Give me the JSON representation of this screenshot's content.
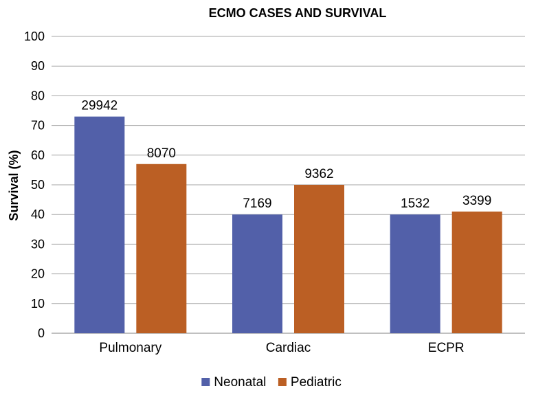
{
  "chart_data": {
    "type": "bar",
    "title": "ECMO CASES AND SURVIVAL",
    "ylabel": "Survival (%)",
    "xlabel": "",
    "ylim": [
      0,
      100
    ],
    "yticks": [
      0,
      10,
      20,
      30,
      40,
      50,
      60,
      70,
      80,
      90,
      100
    ],
    "categories": [
      "Pulmonary",
      "Cardiac",
      "ECPR"
    ],
    "series": [
      {
        "name": "Neonatal",
        "color": "#5260a9",
        "values": [
          73,
          40,
          40
        ],
        "data_labels": [
          "29942",
          "7169",
          "1532"
        ]
      },
      {
        "name": "Pediatric",
        "color": "#bb5f24",
        "values": [
          57,
          50,
          41
        ],
        "data_labels": [
          "8070",
          "9362",
          "3399"
        ]
      }
    ],
    "grid": true,
    "legend_position": "bottom"
  }
}
